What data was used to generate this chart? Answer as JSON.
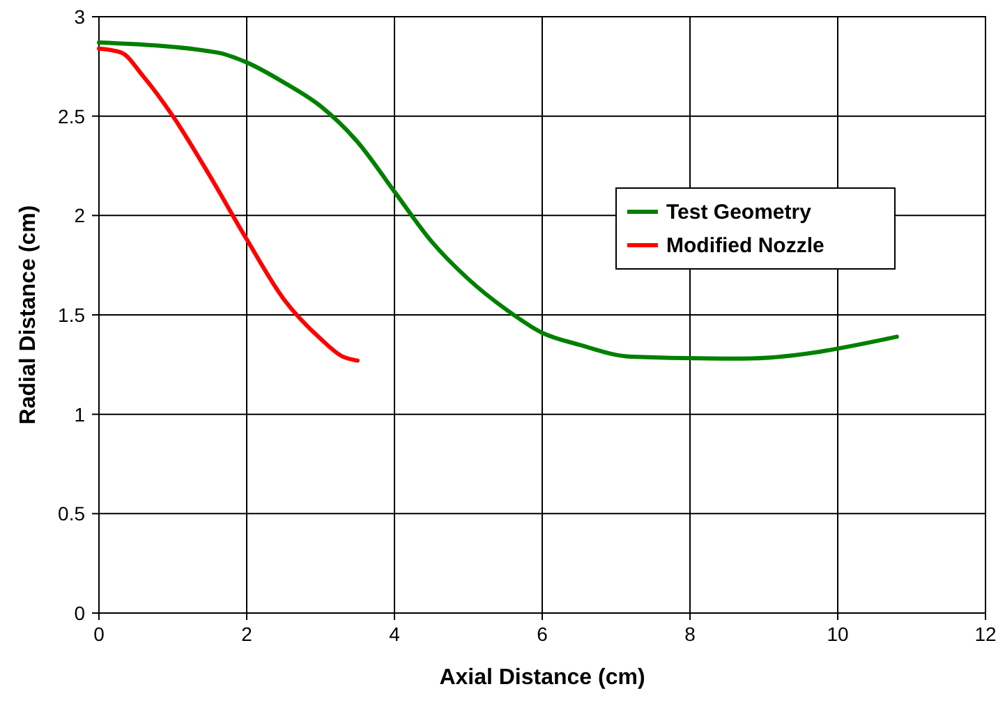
{
  "chart_data": {
    "type": "line",
    "xlabel": "Axial Distance (cm)",
    "ylabel": "Radial Distance (cm)",
    "xlim": [
      0,
      12
    ],
    "xticks": [
      0,
      2,
      4,
      6,
      8,
      10,
      12
    ],
    "ylim": [
      0,
      3
    ],
    "yticks": [
      0,
      0.5,
      1,
      1.5,
      2,
      2.5,
      3
    ],
    "grid": true,
    "legend": "right",
    "marker": "none",
    "line_style": "solid",
    "series": [
      {
        "name": "Test Geometry",
        "color": "#008000",
        "x": [
          0,
          1.6,
          2,
          2.5,
          3,
          3.5,
          4,
          4.5,
          5,
          5.5,
          6,
          6.5,
          7.2,
          8.7,
          10.8
        ],
        "values": [
          2.87,
          2.82,
          2.77,
          2.67,
          2.55,
          2.37,
          2.12,
          1.87,
          1.68,
          1.53,
          1.41,
          1.35,
          1.29,
          1.28,
          1.39
        ]
      },
      {
        "name": "Modified Nozzle",
        "color": "#ff0000",
        "x": [
          0,
          0.3,
          0.6,
          1,
          1.5,
          2,
          2.5,
          3,
          3.3,
          3.5
        ],
        "values": [
          2.84,
          2.82,
          2.7,
          2.5,
          2.2,
          1.88,
          1.58,
          1.38,
          1.29,
          1.27
        ]
      }
    ]
  }
}
